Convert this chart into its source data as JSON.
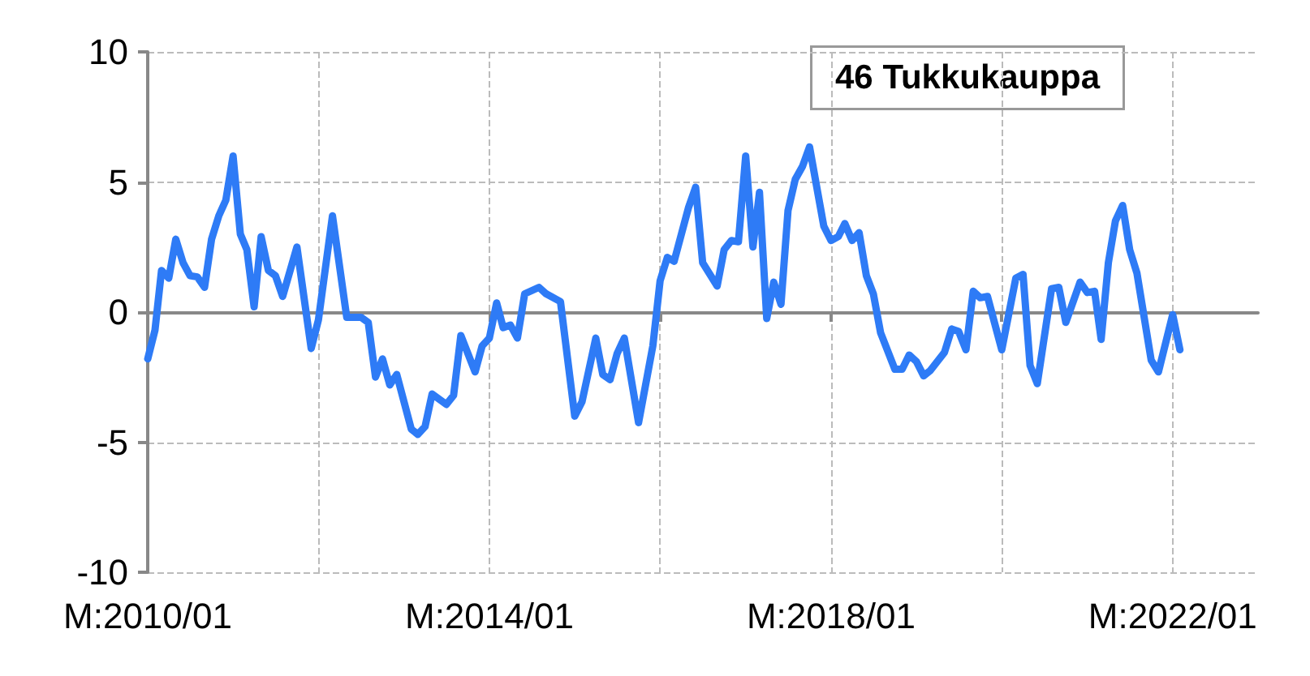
{
  "chart_data": {
    "type": "line",
    "title": "46 Tukkukauppa",
    "x": [
      "2010-01",
      "2010-02",
      "2010-03",
      "2010-04",
      "2010-05",
      "2010-06",
      "2010-07",
      "2010-08",
      "2010-09",
      "2010-10",
      "2010-11",
      "2010-12",
      "2011-01",
      "2011-02",
      "2011-03",
      "2011-04",
      "2011-05",
      "2011-06",
      "2011-07",
      "2011-08",
      "2011-10",
      "2011-12",
      "2012-01",
      "2012-03",
      "2012-05",
      "2012-07",
      "2012-08",
      "2012-09",
      "2012-10",
      "2012-11",
      "2012-12",
      "2013-02",
      "2013-03",
      "2013-04",
      "2013-05",
      "2013-07",
      "2013-08",
      "2013-09",
      "2013-11",
      "2013-12",
      "2014-01",
      "2014-02",
      "2014-03",
      "2014-04",
      "2014-05",
      "2014-06",
      "2014-08",
      "2014-09",
      "2014-11",
      "2015-01",
      "2015-02",
      "2015-04",
      "2015-05",
      "2015-06",
      "2015-07",
      "2015-08",
      "2015-10",
      "2015-12",
      "2016-01",
      "2016-02",
      "2016-03",
      "2016-05",
      "2016-06",
      "2016-07",
      "2016-09",
      "2016-10",
      "2016-11",
      "2016-12",
      "2017-01",
      "2017-02",
      "2017-03",
      "2017-04",
      "2017-05",
      "2017-06",
      "2017-07",
      "2017-08",
      "2017-09",
      "2017-10",
      "2017-12",
      "2018-01",
      "2018-02",
      "2018-03",
      "2018-04",
      "2018-05",
      "2018-06",
      "2018-07",
      "2018-08",
      "2018-10",
      "2018-11",
      "2018-12",
      "2019-01",
      "2019-02",
      "2019-03",
      "2019-05",
      "2019-06",
      "2019-07",
      "2019-08",
      "2019-09",
      "2019-10",
      "2019-11",
      "2020-01",
      "2020-03",
      "2020-04",
      "2020-05",
      "2020-06",
      "2020-08",
      "2020-09",
      "2020-10",
      "2020-12",
      "2021-01",
      "2021-02",
      "2021-03",
      "2021-04",
      "2021-05",
      "2021-06",
      "2021-07",
      "2021-08",
      "2021-10",
      "2021-11",
      "2022-01",
      "2022-02"
    ],
    "series": [
      {
        "color": "#2e7bf6",
        "values": [
          -1.8,
          -0.7,
          1.6,
          1.3,
          2.8,
          1.9,
          1.4,
          1.35,
          0.95,
          2.8,
          3.7,
          4.3,
          6.0,
          3.0,
          2.4,
          0.2,
          2.9,
          1.6,
          1.4,
          0.6,
          2.5,
          -1.4,
          -0.3,
          3.7,
          -0.2,
          -0.2,
          -0.4,
          -2.5,
          -1.8,
          -2.8,
          -2.4,
          -4.5,
          -4.7,
          -4.4,
          -3.15,
          -3.55,
          -3.2,
          -0.9,
          -2.3,
          -1.3,
          -1.0,
          0.35,
          -0.6,
          -0.5,
          -1.0,
          0.7,
          0.95,
          0.7,
          0.4,
          -4.0,
          -3.45,
          -1.0,
          -2.4,
          -2.6,
          -1.6,
          -1.0,
          -4.25,
          -1.3,
          1.2,
          2.1,
          1.95,
          4.0,
          4.8,
          1.9,
          1.0,
          2.4,
          2.75,
          2.7,
          6.0,
          2.5,
          4.6,
          -0.25,
          1.15,
          0.3,
          3.9,
          5.1,
          5.6,
          6.35,
          3.3,
          2.75,
          2.9,
          3.4,
          2.75,
          3.05,
          1.4,
          0.7,
          -0.8,
          -2.2,
          -2.2,
          -1.65,
          -1.9,
          -2.45,
          -2.25,
          -1.55,
          -0.65,
          -0.75,
          -1.45,
          0.8,
          0.55,
          0.6,
          -1.45,
          1.3,
          1.45,
          -2.05,
          -2.75,
          0.9,
          0.95,
          -0.4,
          1.15,
          0.75,
          0.8,
          -1.05,
          1.9,
          3.5,
          4.1,
          2.4,
          1.5,
          -1.85,
          -2.3,
          -0.1,
          -1.45
        ]
      }
    ],
    "xlim": [
      "2010-01",
      "2023-01"
    ],
    "xticks": [
      {
        "value": "2010-01",
        "label": "M:2010/01"
      },
      {
        "value": "2012-01",
        "label": null
      },
      {
        "value": "2014-01",
        "label": "M:2014/01"
      },
      {
        "value": "2016-01",
        "label": null
      },
      {
        "value": "2018-01",
        "label": "M:2018/01"
      },
      {
        "value": "2020-01",
        "label": null
      },
      {
        "value": "2022-01",
        "label": "M:2022/01"
      }
    ],
    "ylim": [
      -10,
      10
    ],
    "yticks": [
      -10,
      -5,
      0,
      5,
      10
    ],
    "grid": true,
    "marker": "none",
    "line_style": "solid"
  }
}
